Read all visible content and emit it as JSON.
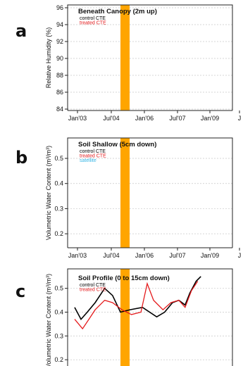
{
  "panel_letters": [
    "a",
    "b",
    "c"
  ],
  "treatment_band": {
    "color": "#FFA500"
  },
  "chart_data": [
    {
      "type": "line",
      "letter": "a",
      "title": "Beneath Canopy (2m up)",
      "ylabel": "Relative Humidity (%)",
      "xlabel": "",
      "x_ticks": [
        "Jan'03",
        "Jul'04",
        "Jan'06",
        "Jul'07",
        "Jan'09",
        "J"
      ],
      "y_ticks": [
        "84",
        "86",
        "88",
        "90",
        "92",
        "94",
        "96"
      ],
      "ylim": [
        84,
        96
      ],
      "grid": true,
      "legend": [
        {
          "name": "control CTE",
          "color": "#000000"
        },
        {
          "name": "treated CTE",
          "color": "#e41a1c"
        }
      ],
      "series": []
    },
    {
      "type": "line",
      "letter": "b",
      "title": "Soil Shallow (5cm down)",
      "ylabel": "Volumetric Water Content (m³/m³)",
      "xlabel": "",
      "x_ticks": [
        "Jan'03",
        "Jul'04",
        "Jan'06",
        "Jul'07",
        "Jan'09",
        "J"
      ],
      "y_ticks": [
        "0.2",
        "0.3",
        "0.4",
        "0.5"
      ],
      "ylim": [
        0.15,
        0.57
      ],
      "grid": true,
      "legend": [
        {
          "name": "control CTE",
          "color": "#000000"
        },
        {
          "name": "treated CTE",
          "color": "#e41a1c"
        },
        {
          "name": "satellite",
          "color": "#33b5e5"
        }
      ],
      "series": []
    },
    {
      "type": "line",
      "letter": "c",
      "title": "Soil Profile (0 to 15cm down)",
      "ylabel": "Volumetric Water Content (m³/m³)",
      "xlabel": "",
      "x_ticks": [],
      "y_ticks": [
        "0.2",
        "0.3",
        "0.4",
        "0.5"
      ],
      "ylim": [
        0.15,
        0.57
      ],
      "grid": true,
      "legend": [
        {
          "name": "control CTE",
          "color": "#000000"
        },
        {
          "name": "treated CTE",
          "color": "#e41a1c"
        }
      ],
      "series": [
        {
          "name": "control CTE",
          "color": "#000000",
          "points": [
            [
              0.0,
              0.42
            ],
            [
              0.04,
              0.37
            ],
            [
              0.08,
              0.4
            ],
            [
              0.13,
              0.44
            ],
            [
              0.19,
              0.5
            ],
            [
              0.24,
              0.47
            ],
            [
              0.29,
              0.4
            ],
            [
              0.35,
              0.41
            ],
            [
              0.43,
              0.42
            ],
            [
              0.52,
              0.38
            ],
            [
              0.57,
              0.4
            ],
            [
              0.62,
              0.44
            ],
            [
              0.66,
              0.45
            ],
            [
              0.7,
              0.43
            ],
            [
              0.73,
              0.48
            ],
            [
              0.77,
              0.53
            ],
            [
              0.8,
              0.55
            ]
          ]
        },
        {
          "name": "treated CTE",
          "color": "#e41a1c",
          "points": [
            [
              0.0,
              0.37
            ],
            [
              0.05,
              0.33
            ],
            [
              0.09,
              0.37
            ],
            [
              0.13,
              0.41
            ],
            [
              0.19,
              0.45
            ],
            [
              0.24,
              0.44
            ],
            [
              0.3,
              0.41
            ],
            [
              0.36,
              0.39
            ],
            [
              0.42,
              0.4
            ],
            [
              0.46,
              0.52
            ],
            [
              0.5,
              0.45
            ],
            [
              0.56,
              0.41
            ],
            [
              0.61,
              0.44
            ],
            [
              0.66,
              0.45
            ],
            [
              0.7,
              0.42
            ],
            [
              0.74,
              0.49
            ],
            [
              0.78,
              0.53
            ]
          ]
        }
      ]
    }
  ]
}
